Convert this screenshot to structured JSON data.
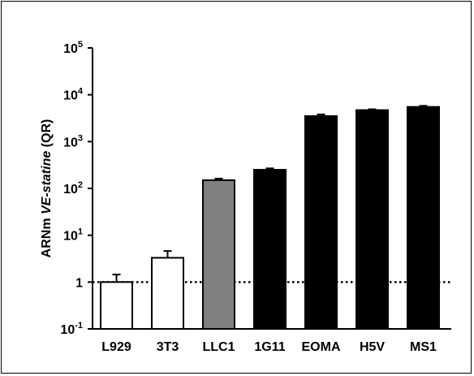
{
  "chart_data": {
    "type": "bar",
    "ylabel": {
      "prefix": "ARNm ",
      "italic": "VE-statine",
      "suffix": " (QR)"
    },
    "yscale": "log",
    "ylim": [
      0.1,
      100000
    ],
    "yticks": [
      {
        "value": 0.1,
        "base": "10",
        "exp": "-1"
      },
      {
        "value": 1,
        "base": "1",
        "exp": ""
      },
      {
        "value": 10,
        "base": "10",
        "exp": "1"
      },
      {
        "value": 100,
        "base": "10",
        "exp": "2"
      },
      {
        "value": 1000,
        "base": "10",
        "exp": "3"
      },
      {
        "value": 10000,
        "base": "10",
        "exp": "4"
      },
      {
        "value": 100000,
        "base": "10",
        "exp": "5"
      }
    ],
    "categories": [
      "L929",
      "3T3",
      "LLC1",
      "1G11",
      "EOMA",
      "H5V",
      "MS1"
    ],
    "values": [
      1.0,
      3.3,
      150,
      250,
      3500,
      4700,
      5500
    ],
    "errors": [
      0.45,
      1.3,
      12,
      18,
      300,
      200,
      300
    ],
    "colors": [
      "#ffffff",
      "#ffffff",
      "#808080",
      "#000000",
      "#000000",
      "#000000",
      "#000000"
    ],
    "reference_line": {
      "value": 1,
      "style": "dotted"
    },
    "grid": false,
    "legend": "none"
  }
}
